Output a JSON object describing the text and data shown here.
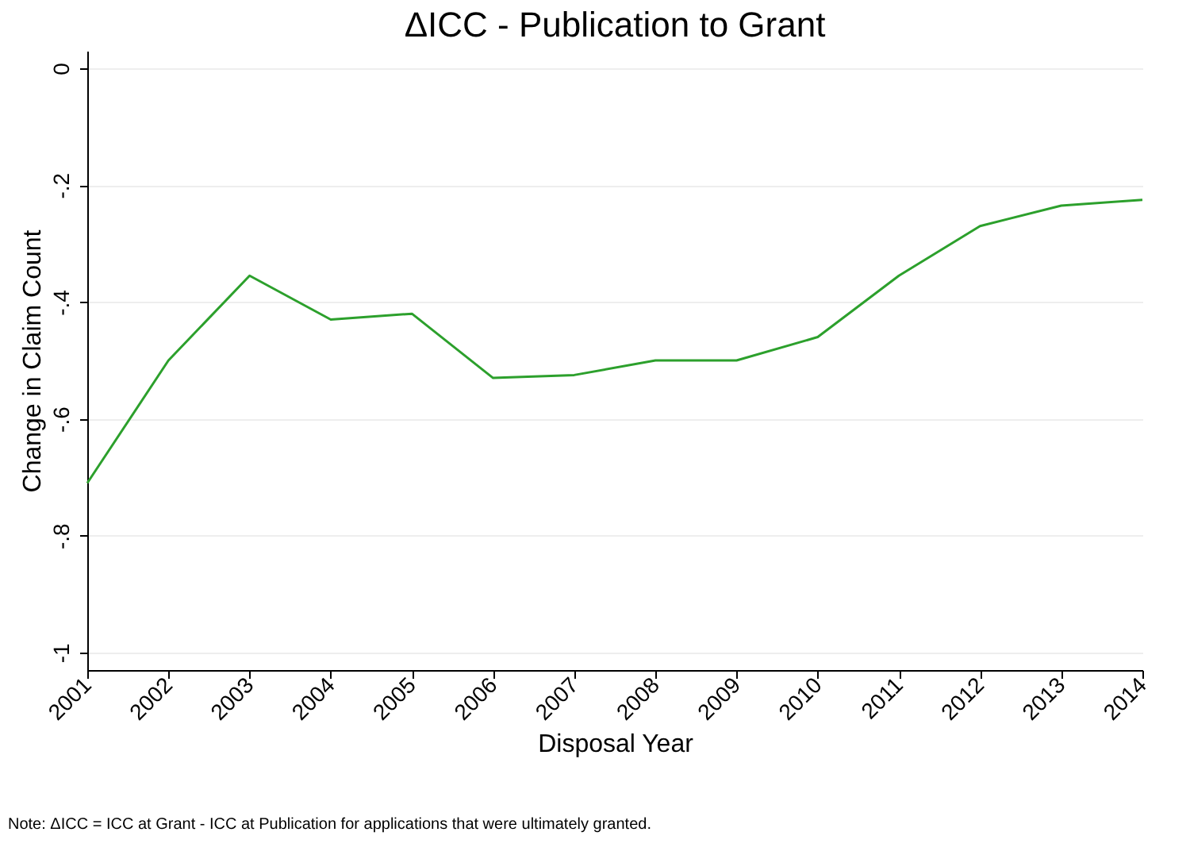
{
  "chart_data": {
    "type": "line",
    "title": "ΔICC - Publication to Grant",
    "xlabel": "Disposal Year",
    "ylabel": "Change in Claim Count",
    "x": [
      2001,
      2002,
      2003,
      2004,
      2005,
      2006,
      2007,
      2008,
      2009,
      2010,
      2011,
      2012,
      2013,
      2014
    ],
    "series": [
      {
        "color": "#2ca02c",
        "values": [
          -0.71,
          -0.5,
          -0.355,
          -0.43,
          -0.42,
          -0.53,
          -0.525,
          -0.5,
          -0.5,
          -0.46,
          -0.355,
          -0.27,
          -0.235,
          -0.225
        ]
      }
    ],
    "xlim": [
      2001,
      2014
    ],
    "xticks": [
      2001,
      2002,
      2003,
      2004,
      2005,
      2006,
      2007,
      2008,
      2009,
      2010,
      2011,
      2012,
      2013,
      2014
    ],
    "ylim": [
      -1.03,
      0.03
    ],
    "yticks": [
      {
        "value": -1,
        "label": "-1"
      },
      {
        "value": -0.8,
        "label": "-.8"
      },
      {
        "value": -0.6,
        "label": "-.6"
      },
      {
        "value": -0.4,
        "label": "-.4"
      },
      {
        "value": -0.2,
        "label": "-.2"
      },
      {
        "value": 0,
        "label": "0"
      }
    ],
    "grid": "y",
    "marker": "none",
    "line_style": "solid",
    "annotations": [
      "Note: ΔICC = ICC at Grant - ICC at Publication for applications that were ultimately granted."
    ]
  }
}
